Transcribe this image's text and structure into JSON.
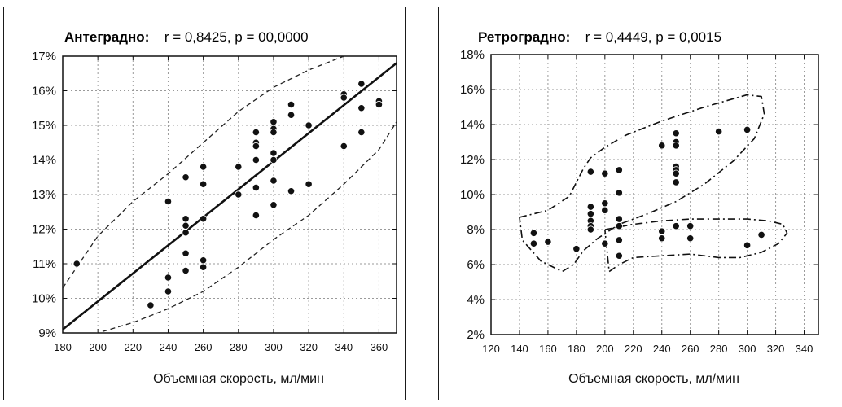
{
  "chart_data": [
    {
      "type": "scatter",
      "title_bold": "Антеградно:",
      "title_stats": "r = 0,8425,  p = 00,0000",
      "xlabel": "Объемная скорость, мл/мин",
      "ylabel": "",
      "xlim": [
        180,
        370
      ],
      "ylim": [
        9,
        17
      ],
      "x_ticks": [
        180,
        200,
        220,
        240,
        260,
        280,
        300,
        320,
        340,
        360
      ],
      "x_tick_labels": [
        "180",
        "200",
        "220",
        "240",
        "260",
        "280",
        "300",
        "320",
        "340",
        "360"
      ],
      "y_ticks": [
        9,
        10,
        11,
        12,
        13,
        14,
        15,
        16,
        17
      ],
      "y_tick_labels": [
        "9%",
        "10%",
        "11%",
        "12%",
        "13%",
        "14%",
        "15%",
        "16%",
        "17%"
      ],
      "grid": true,
      "points": [
        {
          "x": 188,
          "y": 11.0
        },
        {
          "x": 230,
          "y": 9.8
        },
        {
          "x": 240,
          "y": 12.8
        },
        {
          "x": 240,
          "y": 10.6
        },
        {
          "x": 240,
          "y": 10.2
        },
        {
          "x": 250,
          "y": 13.5
        },
        {
          "x": 250,
          "y": 12.3
        },
        {
          "x": 250,
          "y": 12.1
        },
        {
          "x": 250,
          "y": 11.9
        },
        {
          "x": 250,
          "y": 11.3
        },
        {
          "x": 250,
          "y": 10.8
        },
        {
          "x": 260,
          "y": 13.8
        },
        {
          "x": 260,
          "y": 13.3
        },
        {
          "x": 260,
          "y": 12.3
        },
        {
          "x": 260,
          "y": 11.1
        },
        {
          "x": 260,
          "y": 10.9
        },
        {
          "x": 280,
          "y": 13.8
        },
        {
          "x": 280,
          "y": 13.0
        },
        {
          "x": 290,
          "y": 14.8
        },
        {
          "x": 290,
          "y": 14.5
        },
        {
          "x": 290,
          "y": 14.4
        },
        {
          "x": 290,
          "y": 14.0
        },
        {
          "x": 290,
          "y": 13.2
        },
        {
          "x": 290,
          "y": 12.4
        },
        {
          "x": 300,
          "y": 15.1
        },
        {
          "x": 300,
          "y": 14.9
        },
        {
          "x": 300,
          "y": 14.8
        },
        {
          "x": 300,
          "y": 14.2
        },
        {
          "x": 300,
          "y": 14.0
        },
        {
          "x": 300,
          "y": 13.4
        },
        {
          "x": 300,
          "y": 12.7
        },
        {
          "x": 310,
          "y": 15.6
        },
        {
          "x": 310,
          "y": 15.3
        },
        {
          "x": 310,
          "y": 13.1
        },
        {
          "x": 320,
          "y": 15.0
        },
        {
          "x": 320,
          "y": 13.3
        },
        {
          "x": 340,
          "y": 15.9
        },
        {
          "x": 340,
          "y": 15.8
        },
        {
          "x": 340,
          "y": 14.4
        },
        {
          "x": 350,
          "y": 16.2
        },
        {
          "x": 350,
          "y": 15.5
        },
        {
          "x": 350,
          "y": 14.8
        },
        {
          "x": 360,
          "y": 15.7
        },
        {
          "x": 360,
          "y": 15.6
        }
      ],
      "regression_line": {
        "x": [
          180,
          370
        ],
        "y": [
          9.1,
          16.8
        ]
      },
      "confidence_band": {
        "upper": {
          "x": [
            180,
            200,
            220,
            240,
            260,
            280,
            300,
            320,
            340,
            350
          ],
          "y": [
            10.3,
            11.8,
            12.8,
            13.6,
            14.5,
            15.4,
            16.1,
            16.6,
            17.0,
            17.1
          ]
        },
        "lower": {
          "x": [
            180,
            200,
            220,
            240,
            260,
            280,
            300,
            320,
            340,
            360,
            370
          ],
          "y": [
            8.8,
            9.0,
            9.3,
            9.7,
            10.2,
            10.9,
            11.7,
            12.4,
            13.3,
            14.3,
            15.1
          ]
        }
      }
    },
    {
      "type": "scatter",
      "title_bold": "Ретроградно:",
      "title_stats": "r = 0,4449,  p = 0,0015",
      "xlabel": "Объемная скорость, мл/мин",
      "ylabel": "",
      "xlim": [
        120,
        350
      ],
      "ylim": [
        2,
        18
      ],
      "x_ticks": [
        120,
        140,
        160,
        180,
        200,
        220,
        240,
        260,
        280,
        300,
        320,
        340
      ],
      "x_tick_labels": [
        "120",
        "140",
        "160",
        "180",
        "200",
        "220",
        "240",
        "260",
        "280",
        "300",
        "320",
        "340"
      ],
      "y_ticks": [
        2,
        4,
        6,
        8,
        10,
        12,
        14,
        16,
        18
      ],
      "y_tick_labels": [
        "2%",
        "4%",
        "6%",
        "8%",
        "10%",
        "12%",
        "14%",
        "16%",
        "18%"
      ],
      "grid": true,
      "points": [
        {
          "x": 150,
          "y": 7.8
        },
        {
          "x": 150,
          "y": 7.2
        },
        {
          "x": 160,
          "y": 7.3
        },
        {
          "x": 180,
          "y": 6.9
        },
        {
          "x": 190,
          "y": 11.3
        },
        {
          "x": 190,
          "y": 9.3
        },
        {
          "x": 190,
          "y": 8.9
        },
        {
          "x": 190,
          "y": 8.5
        },
        {
          "x": 190,
          "y": 8.2
        },
        {
          "x": 190,
          "y": 8.0
        },
        {
          "x": 200,
          "y": 11.2
        },
        {
          "x": 200,
          "y": 9.5
        },
        {
          "x": 200,
          "y": 9.1
        },
        {
          "x": 200,
          "y": 7.2
        },
        {
          "x": 210,
          "y": 11.4
        },
        {
          "x": 210,
          "y": 10.1
        },
        {
          "x": 210,
          "y": 8.6
        },
        {
          "x": 210,
          "y": 8.2
        },
        {
          "x": 210,
          "y": 7.4
        },
        {
          "x": 210,
          "y": 6.5
        },
        {
          "x": 240,
          "y": 12.8
        },
        {
          "x": 240,
          "y": 7.9
        },
        {
          "x": 240,
          "y": 7.5
        },
        {
          "x": 250,
          "y": 13.5
        },
        {
          "x": 250,
          "y": 13.0
        },
        {
          "x": 250,
          "y": 12.8
        },
        {
          "x": 250,
          "y": 11.6
        },
        {
          "x": 250,
          "y": 11.4
        },
        {
          "x": 250,
          "y": 11.2
        },
        {
          "x": 250,
          "y": 10.7
        },
        {
          "x": 250,
          "y": 8.2
        },
        {
          "x": 260,
          "y": 8.2
        },
        {
          "x": 260,
          "y": 7.5
        },
        {
          "x": 280,
          "y": 13.6
        },
        {
          "x": 300,
          "y": 13.7
        },
        {
          "x": 300,
          "y": 7.1
        },
        {
          "x": 310,
          "y": 7.7
        }
      ],
      "ellipses": [
        {
          "x": [
            140,
            160,
            175,
            185,
            190,
            200,
            215,
            240,
            270,
            300,
            310,
            312,
            305,
            290,
            270,
            250,
            230,
            210,
            195,
            185,
            178,
            170,
            155,
            142,
            140
          ],
          "y": [
            8.7,
            9.1,
            9.9,
            11.5,
            12.1,
            12.7,
            13.4,
            14.2,
            15.0,
            15.7,
            15.6,
            14.6,
            13.2,
            11.9,
            10.6,
            9.6,
            8.9,
            8.3,
            7.5,
            6.8,
            6.0,
            5.6,
            6.2,
            7.4,
            8.7
          ]
        },
        {
          "x": [
            200,
            220,
            240,
            260,
            280,
            300,
            315,
            325,
            328,
            322,
            310,
            295,
            280,
            260,
            240,
            220,
            210,
            203,
            200
          ],
          "y": [
            8.0,
            8.3,
            8.5,
            8.6,
            8.6,
            8.6,
            8.5,
            8.3,
            7.8,
            7.2,
            6.7,
            6.4,
            6.4,
            6.6,
            6.5,
            6.4,
            6.0,
            5.6,
            8.0
          ]
        }
      ]
    }
  ]
}
